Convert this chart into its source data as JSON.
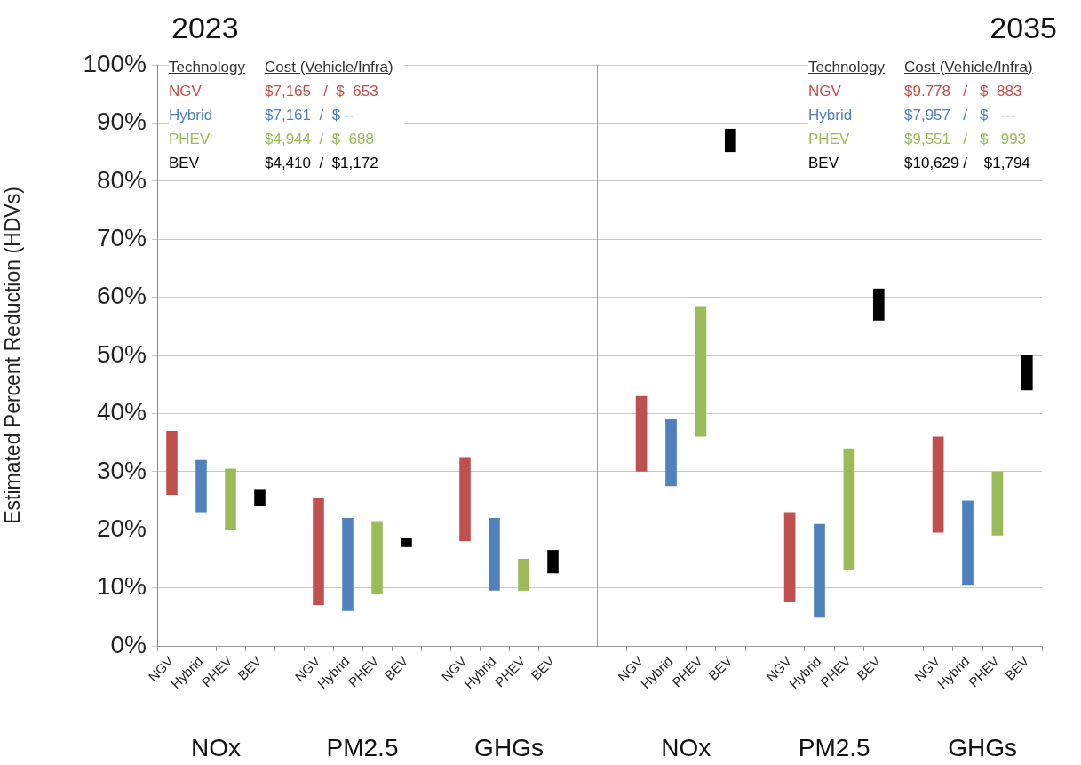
{
  "chart_data": [
    {
      "type": "bar",
      "title": "2023",
      "ylabel": "Estimated Percent Reduction (HDVs)",
      "categories": [
        "NGV",
        "Hybrid",
        "PHEV",
        "BEV",
        null,
        "NGV",
        "Hybrid",
        "PHEV",
        "BEV",
        null,
        "NGV",
        "Hybrid",
        "PHEV",
        "BEV",
        null
      ],
      "base": [
        26,
        23,
        20,
        24,
        null,
        7,
        6,
        9,
        17,
        null,
        18,
        9.5,
        9.5,
        12.5,
        null
      ],
      "values": [
        11,
        9,
        10.5,
        3,
        null,
        18.5,
        16,
        12.5,
        1.5,
        null,
        14.5,
        12.5,
        5.5,
        4,
        null
      ],
      "colors": [
        "#c0504d",
        "#4f81bd",
        "#9bbb59",
        "#000000",
        null,
        "#c0504d",
        "#4f81bd",
        "#9bbb59",
        "#000000",
        null,
        "#c0504d",
        "#4f81bd",
        "#9bbb59",
        "#000000",
        null
      ],
      "ylim": [
        0,
        100
      ],
      "yticks": [
        {
          "value": 0,
          "label": "0%"
        },
        {
          "value": 10,
          "label": "10%"
        },
        {
          "value": 20,
          "label": "20%"
        },
        {
          "value": 30,
          "label": "30%"
        },
        {
          "value": 40,
          "label": "40%"
        },
        {
          "value": 50,
          "label": "50%"
        },
        {
          "value": 60,
          "label": "60%"
        },
        {
          "value": 70,
          "label": "70%"
        },
        {
          "value": 80,
          "label": "80%"
        },
        {
          "value": 90,
          "label": "90%"
        },
        {
          "value": 100,
          "label": "100%"
        }
      ],
      "grid": "y",
      "annotations": [
        "NOx",
        "PM2.5",
        "GHGs",
        "Technology",
        "Cost (Vehicle/Infra)",
        "NGV",
        "$7,165   /  $  653",
        "Hybrid",
        "$7,161  /  $ --",
        "PHEV",
        "$4,944  /  $  688",
        "BEV",
        "$4,410  /  $1,172"
      ]
    },
    {
      "type": "bar",
      "title": "2035",
      "categories": [
        null,
        "NGV",
        "Hybrid",
        "PHEV",
        "BEV",
        null,
        "NGV",
        "Hybrid",
        "PHEV",
        "BEV",
        null,
        "NGV",
        "Hybrid",
        "PHEV",
        "BEV"
      ],
      "base": [
        null,
        30,
        27.5,
        36,
        85,
        null,
        7.5,
        5,
        13,
        56,
        null,
        19.5,
        10.5,
        19,
        44
      ],
      "values": [
        null,
        13,
        11.5,
        22.5,
        4,
        null,
        15.5,
        16,
        21,
        5.5,
        null,
        16.5,
        14.5,
        11,
        6
      ],
      "colors": [
        null,
        "#c0504d",
        "#4f81bd",
        "#9bbb59",
        "#000000",
        null,
        "#c0504d",
        "#4f81bd",
        "#9bbb59",
        "#000000",
        null,
        "#c0504d",
        "#4f81bd",
        "#9bbb59",
        "#000000"
      ],
      "ylim": [
        0,
        100
      ],
      "yticks": [
        0,
        10,
        20,
        30,
        40,
        50,
        60,
        70,
        80,
        90,
        100
      ],
      "grid": "y",
      "tick_labels": "x",
      "annotations": [
        "NOx",
        "PM2.5",
        "GHGs",
        "Technology",
        "Cost (Vehicle/Infra)",
        "NGV",
        "$9.778   /   $  883",
        "Hybrid",
        "$7,957   /   $   ---",
        "PHEV",
        "$9,551   /   $   993",
        "BEV",
        "$10,629 /    $1,794"
      ]
    }
  ]
}
